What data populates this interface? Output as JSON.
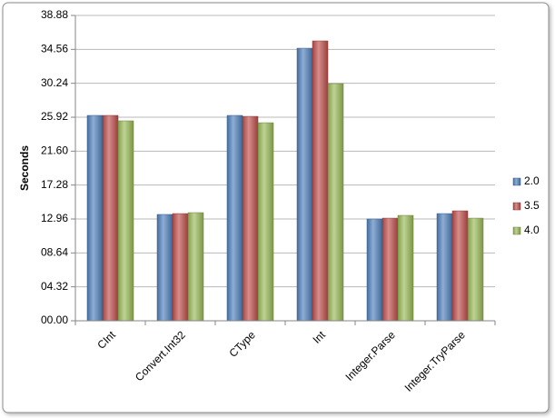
{
  "chart_data": {
    "type": "bar",
    "y_label": "Seconds",
    "categories": [
      "CInt",
      "Convert.Int32",
      "CType",
      "Int",
      "Integer.Parse",
      "Integer.TryParse"
    ],
    "series": [
      {
        "name": "2.0",
        "color": "#4f81bd",
        "values": [
          26.15,
          13.54,
          26.15,
          34.71,
          12.96,
          13.65
        ]
      },
      {
        "name": "3.5",
        "color": "#c0504d",
        "values": [
          26.15,
          13.65,
          26.03,
          35.64,
          13.07,
          14.0
        ]
      },
      {
        "name": "4.0",
        "color": "#9bbb59",
        "values": [
          25.46,
          13.77,
          25.22,
          30.2,
          13.42,
          13.07
        ]
      }
    ],
    "ylim": [
      0,
      38.88
    ],
    "yticks": [
      {
        "value": 0,
        "label": "00.00"
      },
      {
        "value": 4.32,
        "label": "04.32"
      },
      {
        "value": 8.64,
        "label": "08.64"
      },
      12.96,
      17.28,
      {
        "value": 21.6,
        "label": "21.60"
      },
      25.92,
      30.24,
      34.56,
      38.88
    ],
    "grid": true,
    "legend": "right"
  }
}
